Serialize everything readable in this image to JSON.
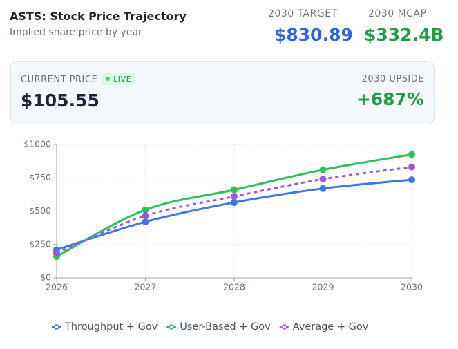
{
  "header": {
    "title": "ASTS: Stock Price Trajectory",
    "subtitle": "Implied share price by year",
    "target_label": "2030 TARGET",
    "target_value": "$830.89",
    "mcap_label": "2030 MCAP",
    "mcap_value": "$332.4B"
  },
  "summary": {
    "price_label": "CURRENT PRICE",
    "live": "LIVE",
    "price": "$105.55",
    "upside_label": "2030 UPSIDE",
    "upside": "+687%"
  },
  "chart_data": {
    "type": "line",
    "categories": [
      "2026",
      "2027",
      "2028",
      "2029",
      "2030"
    ],
    "series": [
      {
        "name": "Throughput + Gov",
        "color": "#3b78e7",
        "values": [
          210,
          420,
          565,
          670,
          735
        ]
      },
      {
        "name": "User-Based + Gov",
        "color": "#2fc05c",
        "values": [
          160,
          510,
          660,
          810,
          925
        ]
      },
      {
        "name": "Average + Gov",
        "color": "#9a55ea",
        "dashed": true,
        "values": [
          185,
          465,
          610,
          740,
          830.89
        ]
      }
    ],
    "ylim": [
      0,
      1000
    ],
    "yticks": [
      {
        "value": 0,
        "label": "$0"
      },
      {
        "value": 250,
        "label": "$250"
      },
      {
        "value": 500,
        "label": "$500"
      },
      {
        "value": 750,
        "label": "$750"
      },
      {
        "value": 1000,
        "label": "$1000"
      }
    ],
    "grid": true
  }
}
